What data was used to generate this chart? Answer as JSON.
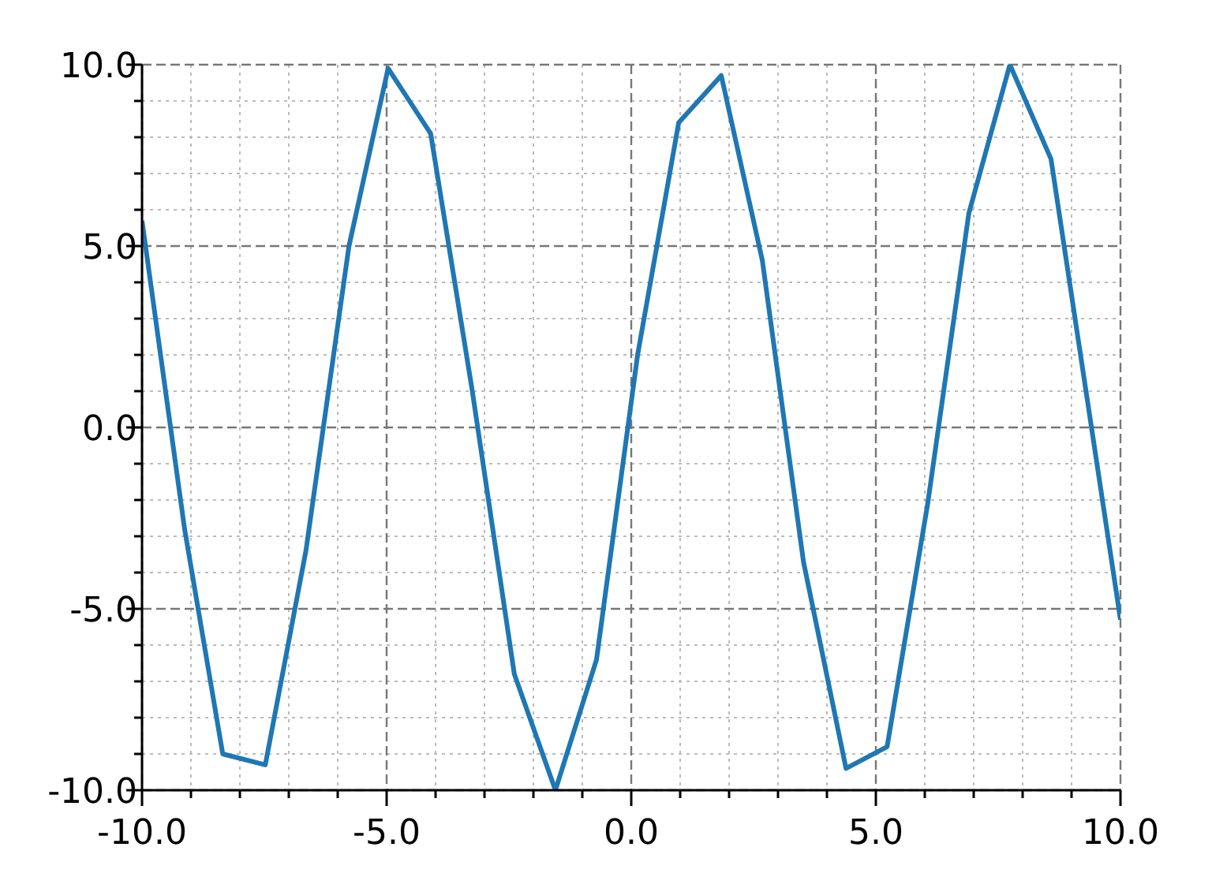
{
  "chart_data": {
    "type": "line",
    "x": [
      -10,
      -9.13,
      -8.35,
      -7.48,
      -6.65,
      -5.77,
      -4.97,
      -4.1,
      -3.26,
      -2.39,
      -1.55,
      -0.71,
      0.13,
      0.97,
      1.84,
      2.68,
      3.52,
      4.39,
      5.23,
      6.06,
      6.9,
      7.74,
      8.58,
      10
    ],
    "series": [
      {
        "color": "#1f77b4",
        "values": [
          5.7,
          -2.8,
          -9.0,
          -9.3,
          -3.4,
          5.0,
          9.9,
          8.1,
          1.1,
          -6.8,
          -10.0,
          -6.4,
          2.0,
          8.4,
          9.7,
          4.6,
          -3.7,
          -9.4,
          -8.8,
          -2.1,
          5.9,
          10.0,
          7.4,
          -5.3
        ]
      }
    ],
    "xlim": [
      -10,
      10
    ],
    "ylim": [
      -10,
      10
    ],
    "xticks": [
      {
        "value": -10,
        "label": "-10.0"
      },
      {
        "value": -9,
        "label": null
      },
      {
        "value": -8,
        "label": null
      },
      {
        "value": -7,
        "label": null
      },
      {
        "value": -6,
        "label": null
      },
      {
        "value": -5,
        "label": "-5.0"
      },
      {
        "value": -4,
        "label": null
      },
      {
        "value": -3,
        "label": null
      },
      {
        "value": -2,
        "label": null
      },
      {
        "value": -1,
        "label": null
      },
      {
        "value": 0,
        "label": "0.0"
      },
      {
        "value": 1,
        "label": null
      },
      {
        "value": 2,
        "label": null
      },
      {
        "value": 3,
        "label": null
      },
      {
        "value": 4,
        "label": null
      },
      {
        "value": 5,
        "label": "5.0"
      },
      {
        "value": 6,
        "label": null
      },
      {
        "value": 7,
        "label": null
      },
      {
        "value": 8,
        "label": null
      },
      {
        "value": 9,
        "label": null
      },
      {
        "value": 10,
        "label": "10.0"
      }
    ],
    "yticks": [
      {
        "value": -10,
        "label": "-10.0"
      },
      {
        "value": -9,
        "label": null
      },
      {
        "value": -8,
        "label": null
      },
      {
        "value": -7,
        "label": null
      },
      {
        "value": -6,
        "label": null
      },
      {
        "value": -5,
        "label": "-5.0"
      },
      {
        "value": -4,
        "label": null
      },
      {
        "value": -3,
        "label": null
      },
      {
        "value": -2,
        "label": null
      },
      {
        "value": -1,
        "label": null
      },
      {
        "value": 0,
        "label": "0.0"
      },
      {
        "value": 1,
        "label": null
      },
      {
        "value": 2,
        "label": null
      },
      {
        "value": 3,
        "label": null
      },
      {
        "value": 4,
        "label": null
      },
      {
        "value": 5,
        "label": "5.0"
      },
      {
        "value": 6,
        "label": null
      },
      {
        "value": 7,
        "label": null
      },
      {
        "value": 8,
        "label": null
      },
      {
        "value": 9,
        "label": null
      },
      {
        "value": 10,
        "label": "10.0"
      }
    ],
    "grid": true,
    "marker": "none",
    "line_style": "solid"
  }
}
